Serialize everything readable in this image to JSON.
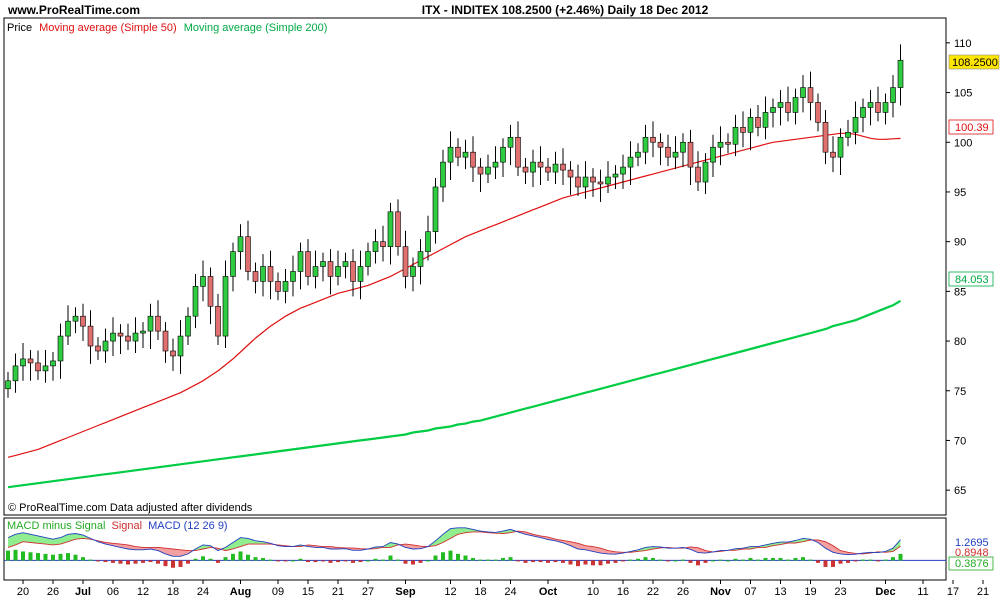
{
  "header": {
    "site": "www.ProRealTime.com",
    "title": "ITX - INDITEX    108.2500 (+2.46%)    Daily  18 Dec 2012"
  },
  "price_panel": {
    "legend": {
      "price": "Price",
      "ma50": "Moving average (Simple 50)",
      "ma200": "Moving average (Simple 200)"
    },
    "note": "© ProRealTime.com  Data adjusted after dividends",
    "last_price_label": "108.2500",
    "ma50_label": "100.39",
    "ma200_label": "84.053"
  },
  "macd_panel": {
    "legend": {
      "hist": "MACD minus Signal",
      "signal": "Signal",
      "macd": "MACD (12 26 9)"
    },
    "value_labels": [
      "1.2695",
      "0.8948",
      "0.3876"
    ]
  },
  "colors": {
    "up": "#2ecc40",
    "down": "#e07070",
    "ma50": "#e01010",
    "ma200": "#00cc44",
    "macd": "#2040c0",
    "signal": "#d03030",
    "fill_pos": "#90ee90",
    "fill_neg": "#f4a0a0",
    "hist_pos": "#22bb22",
    "hist_neg": "#cc3333"
  },
  "chart_data": {
    "type": "candlestick",
    "y_ticks": [
      65,
      70,
      75,
      80,
      85,
      90,
      95,
      100,
      105,
      110
    ],
    "ylim": [
      62.5,
      112.5
    ],
    "x_ticks": [
      {
        "i": 2,
        "label": "20"
      },
      {
        "i": 6,
        "label": "26"
      },
      {
        "i": 10,
        "label": "Jul",
        "bold": true
      },
      {
        "i": 14,
        "label": "06"
      },
      {
        "i": 18,
        "label": "12"
      },
      {
        "i": 22,
        "label": "18"
      },
      {
        "i": 26,
        "label": "24"
      },
      {
        "i": 31,
        "label": "Aug",
        "bold": true
      },
      {
        "i": 36,
        "label": "09"
      },
      {
        "i": 40,
        "label": "15"
      },
      {
        "i": 44,
        "label": "21"
      },
      {
        "i": 48,
        "label": "27"
      },
      {
        "i": 53,
        "label": "Sep",
        "bold": true
      },
      {
        "i": 59,
        "label": "12"
      },
      {
        "i": 63,
        "label": "18"
      },
      {
        "i": 67,
        "label": "24"
      },
      {
        "i": 72,
        "label": "Oct",
        "bold": true
      },
      {
        "i": 78,
        "label": "10"
      },
      {
        "i": 82,
        "label": "16"
      },
      {
        "i": 86,
        "label": "22"
      },
      {
        "i": 90,
        "label": "26"
      },
      {
        "i": 95,
        "label": "Nov",
        "bold": true
      },
      {
        "i": 99,
        "label": "07"
      },
      {
        "i": 103,
        "label": "13"
      },
      {
        "i": 107,
        "label": "19"
      },
      {
        "i": 111,
        "label": "23"
      },
      {
        "i": 117,
        "label": "Dec",
        "bold": true
      },
      {
        "i": 122,
        "label": "11"
      },
      {
        "i": 126,
        "label": "17"
      },
      {
        "i": 130,
        "label": "21"
      }
    ],
    "closes": [
      76.0,
      77.5,
      78.2,
      77.8,
      77.0,
      77.5,
      78.0,
      80.5,
      82.0,
      82.5,
      81.5,
      79.5,
      79.0,
      80.0,
      80.8,
      80.5,
      80.0,
      80.8,
      81.0,
      82.5,
      81.0,
      79.0,
      78.5,
      80.5,
      82.5,
      85.5,
      86.5,
      83.5,
      80.5,
      86.5,
      89.0,
      90.5,
      87.0,
      86.0,
      87.5,
      86.0,
      85.0,
      86.0,
      87.0,
      89.0,
      86.5,
      87.5,
      88.0,
      86.5,
      87.5,
      88.0,
      86.0,
      87.5,
      89.0,
      90.0,
      89.5,
      93.0,
      89.5,
      86.5,
      87.5,
      89.0,
      91.0,
      95.5,
      98.0,
      99.5,
      98.5,
      99.0,
      97.5,
      96.8,
      97.5,
      98.0,
      99.5,
      100.5,
      97.5,
      97.0,
      98.0,
      97.5,
      97.0,
      97.8,
      97.2,
      96.5,
      95.5,
      96.5,
      96.0,
      95.8,
      96.5,
      96.8,
      97.5,
      98.5,
      99.0,
      100.5,
      100.0,
      99.5,
      98.5,
      99.0,
      100.0,
      97.5,
      96.0,
      98.0,
      99.5,
      100.0,
      99.8,
      101.5,
      101.0,
      102.5,
      101.5,
      103.0,
      103.5,
      104.0,
      103.0,
      104.5,
      105.5,
      104.0,
      102.0,
      99.0,
      98.5,
      100.5,
      101.0,
      102.5,
      103.5,
      104.0,
      103.0,
      104.0,
      105.5,
      108.25
    ],
    "ma50": [
      68.3,
      68.5,
      68.7,
      68.9,
      69.1,
      69.4,
      69.7,
      70.0,
      70.3,
      70.6,
      70.9,
      71.2,
      71.5,
      71.8,
      72.1,
      72.4,
      72.7,
      73.0,
      73.3,
      73.6,
      73.9,
      74.2,
      74.5,
      74.8,
      75.2,
      75.6,
      76.0,
      76.5,
      77.0,
      77.6,
      78.2,
      78.9,
      79.6,
      80.3,
      80.9,
      81.5,
      82.0,
      82.5,
      82.9,
      83.3,
      83.6,
      83.9,
      84.2,
      84.5,
      84.8,
      85.0,
      85.2,
      85.4,
      85.6,
      85.9,
      86.2,
      86.5,
      86.9,
      87.3,
      87.7,
      88.1,
      88.5,
      88.9,
      89.3,
      89.7,
      90.1,
      90.5,
      90.8,
      91.1,
      91.4,
      91.7,
      92.0,
      92.3,
      92.6,
      92.9,
      93.2,
      93.5,
      93.8,
      94.1,
      94.4,
      94.6,
      94.8,
      95.0,
      95.2,
      95.4,
      95.6,
      95.8,
      96.0,
      96.2,
      96.4,
      96.6,
      96.8,
      97.0,
      97.2,
      97.4,
      97.6,
      97.8,
      98.0,
      98.2,
      98.4,
      98.6,
      98.8,
      99.0,
      99.2,
      99.4,
      99.6,
      99.8,
      100.0,
      100.1,
      100.2,
      100.3,
      100.4,
      100.5,
      100.6,
      100.7,
      100.8,
      100.9,
      100.9,
      100.8,
      100.6,
      100.4,
      100.3,
      100.3,
      100.35,
      100.39
    ],
    "ma200": [
      65.3,
      65.4,
      65.5,
      65.6,
      65.7,
      65.8,
      65.9,
      66.0,
      66.1,
      66.2,
      66.3,
      66.4,
      66.5,
      66.6,
      66.7,
      66.8,
      66.9,
      67.0,
      67.1,
      67.2,
      67.3,
      67.4,
      67.5,
      67.6,
      67.7,
      67.8,
      67.9,
      68.0,
      68.1,
      68.2,
      68.3,
      68.4,
      68.5,
      68.6,
      68.7,
      68.8,
      68.9,
      69.0,
      69.1,
      69.2,
      69.3,
      69.4,
      69.5,
      69.6,
      69.7,
      69.8,
      69.9,
      70.0,
      70.1,
      70.2,
      70.3,
      70.4,
      70.5,
      70.6,
      70.8,
      70.9,
      71.0,
      71.2,
      71.3,
      71.4,
      71.6,
      71.7,
      71.9,
      72.0,
      72.2,
      72.4,
      72.6,
      72.8,
      73.0,
      73.2,
      73.4,
      73.6,
      73.8,
      74.0,
      74.2,
      74.4,
      74.6,
      74.8,
      75.0,
      75.2,
      75.4,
      75.6,
      75.8,
      76.0,
      76.2,
      76.4,
      76.6,
      76.8,
      77.0,
      77.2,
      77.4,
      77.6,
      77.8,
      78.0,
      78.2,
      78.4,
      78.6,
      78.8,
      79.0,
      79.2,
      79.4,
      79.6,
      79.8,
      80.0,
      80.2,
      80.4,
      80.6,
      80.8,
      81.0,
      81.2,
      81.5,
      81.7,
      81.9,
      82.1,
      82.4,
      82.7,
      83.0,
      83.3,
      83.6,
      84.053
    ],
    "macd": {
      "ylim": [
        -1.2,
        2.6
      ],
      "hist": [
        0.6,
        0.65,
        0.55,
        0.5,
        0.45,
        0.4,
        0.35,
        0.4,
        0.45,
        0.35,
        0.2,
        0.05,
        -0.05,
        -0.1,
        -0.15,
        -0.2,
        -0.25,
        -0.2,
        -0.15,
        -0.1,
        -0.2,
        -0.35,
        -0.45,
        -0.4,
        -0.2,
        0.1,
        0.25,
        0.1,
        -0.15,
        0.2,
        0.4,
        0.55,
        0.35,
        0.2,
        0.15,
        0.05,
        -0.05,
        -0.05,
        0.0,
        0.1,
        -0.1,
        -0.1,
        -0.05,
        -0.15,
        -0.1,
        -0.05,
        -0.15,
        -0.1,
        0.0,
        0.1,
        0.05,
        0.3,
        0.05,
        -0.2,
        -0.25,
        -0.15,
        0.0,
        0.3,
        0.5,
        0.6,
        0.4,
        0.3,
        0.15,
        0.05,
        0.05,
        0.05,
        0.15,
        0.2,
        -0.05,
        -0.15,
        -0.1,
        -0.1,
        -0.15,
        -0.1,
        -0.15,
        -0.25,
        -0.35,
        -0.25,
        -0.3,
        -0.3,
        -0.2,
        -0.15,
        -0.05,
        0.05,
        0.1,
        0.2,
        0.15,
        0.05,
        -0.05,
        0.0,
        0.05,
        -0.15,
        -0.3,
        -0.15,
        0.0,
        0.05,
        0.0,
        0.1,
        0.05,
        0.15,
        0.05,
        0.15,
        0.15,
        0.15,
        0.05,
        0.15,
        0.2,
        0.05,
        -0.15,
        -0.4,
        -0.4,
        -0.2,
        -0.15,
        -0.05,
        0.05,
        0.05,
        -0.05,
        0.05,
        0.2,
        0.4
      ],
      "macd": [
        1.4,
        1.6,
        1.7,
        1.6,
        1.5,
        1.4,
        1.3,
        1.4,
        1.6,
        1.65,
        1.55,
        1.35,
        1.15,
        1.0,
        0.9,
        0.8,
        0.7,
        0.65,
        0.65,
        0.7,
        0.6,
        0.4,
        0.25,
        0.25,
        0.4,
        0.7,
        0.95,
        0.9,
        0.6,
        0.8,
        1.1,
        1.4,
        1.35,
        1.2,
        1.15,
        1.05,
        0.9,
        0.85,
        0.85,
        0.95,
        0.85,
        0.8,
        0.8,
        0.7,
        0.7,
        0.72,
        0.62,
        0.62,
        0.7,
        0.82,
        0.85,
        1.1,
        1.0,
        0.8,
        0.7,
        0.72,
        0.85,
        1.2,
        1.6,
        1.95,
        2.0,
        2.0,
        1.9,
        1.8,
        1.75,
        1.72,
        1.8,
        1.9,
        1.75,
        1.6,
        1.5,
        1.4,
        1.28,
        1.2,
        1.08,
        0.9,
        0.7,
        0.65,
        0.55,
        0.45,
        0.4,
        0.38,
        0.45,
        0.55,
        0.65,
        0.8,
        0.85,
        0.82,
        0.75,
        0.75,
        0.8,
        0.68,
        0.48,
        0.45,
        0.52,
        0.6,
        0.62,
        0.72,
        0.75,
        0.85,
        0.85,
        0.95,
        1.05,
        1.12,
        1.12,
        1.22,
        1.35,
        1.3,
        1.1,
        0.75,
        0.5,
        0.4,
        0.35,
        0.38,
        0.45,
        0.5,
        0.48,
        0.55,
        0.75,
        1.2695
      ]
    }
  }
}
